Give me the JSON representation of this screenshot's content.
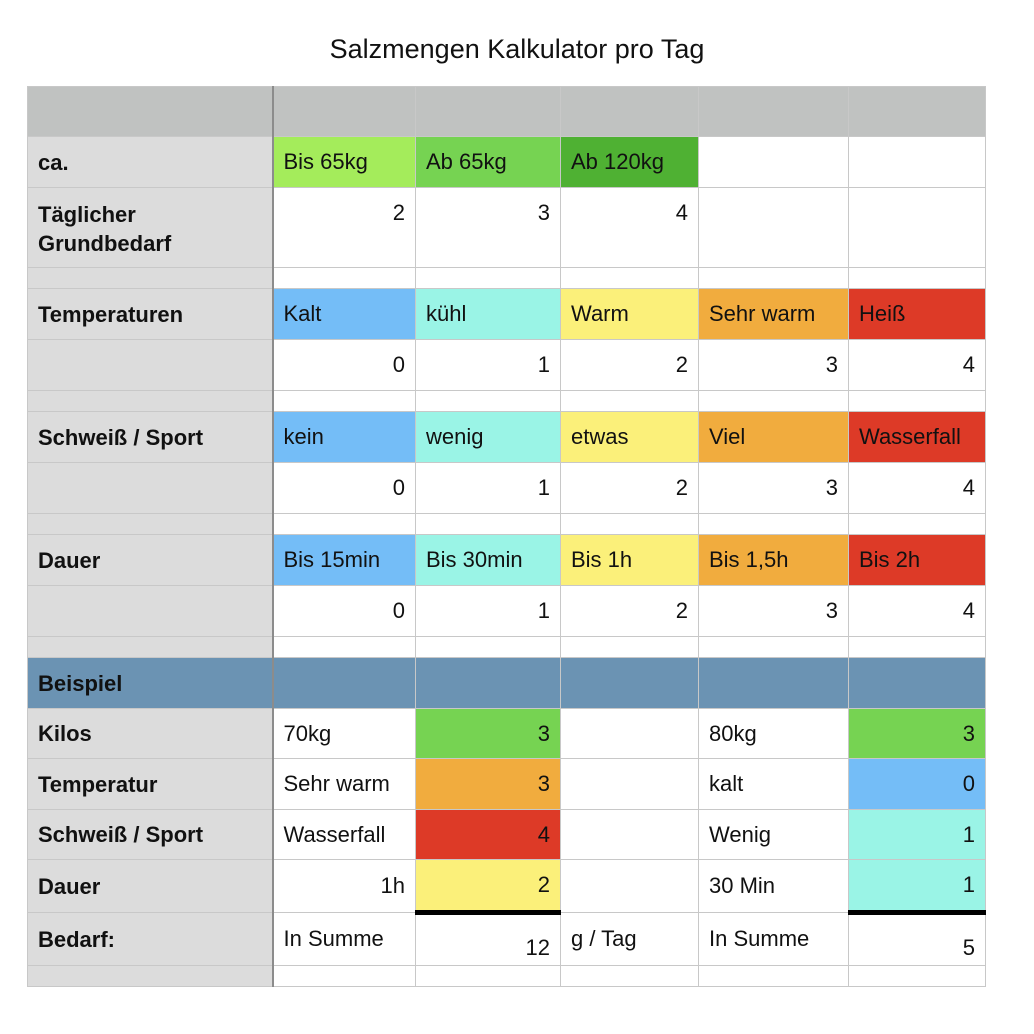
{
  "title": "Salzmengen Kalkulator pro Tag",
  "rows": {
    "weight": {
      "label": "ca.",
      "c1": "Bis 65kg",
      "c2": "Ab 65kg",
      "c3": "Ab 120kg"
    },
    "base": {
      "label": "Täglicher Grundbedarf",
      "v1": "2",
      "v2": "3",
      "v3": "4"
    },
    "temp": {
      "label": "Temperaturen",
      "c1": "Kalt",
      "c2": "kühl",
      "c3": "Warm",
      "c4": "Sehr warm",
      "c5": "Heiß",
      "v1": "0",
      "v2": "1",
      "v3": "2",
      "v4": "3",
      "v5": "4"
    },
    "sweat": {
      "label": "Schweiß / Sport",
      "c1": "kein",
      "c2": "wenig",
      "c3": "etwas",
      "c4": "Viel",
      "c5": "Wasserfall",
      "v1": "0",
      "v2": "1",
      "v3": "2",
      "v4": "3",
      "v5": "4"
    },
    "duration": {
      "label": "Dauer",
      "c1": "Bis 15min",
      "c2": "Bis 30min",
      "c3": "Bis 1h",
      "c4": "Bis 1,5h",
      "c5": "Bis 2h",
      "v1": "0",
      "v2": "1",
      "v3": "2",
      "v4": "3",
      "v5": "4"
    }
  },
  "example": {
    "header": "Beispiel",
    "kilos": {
      "label": "Kilos",
      "a": "70kg",
      "av": "3",
      "b": "80kg",
      "bv": "3"
    },
    "temperatur": {
      "label": "Temperatur",
      "a": "Sehr warm",
      "av": "3",
      "b": "kalt",
      "bv": "0"
    },
    "schweiss": {
      "label": "Schweiß / Sport",
      "a": "Wasserfall",
      "av": "4",
      "b": "Wenig",
      "bv": "1"
    },
    "dauer": {
      "label": "Dauer",
      "a": "1h",
      "av": "2",
      "b": "30 Min",
      "bv": "1"
    },
    "bedarf": {
      "label": "Bedarf:",
      "a": "In Summe",
      "av": "12",
      "unit": "g / Tag",
      "b": "In Summe",
      "bv": "5"
    }
  },
  "colors": {
    "header_gray": "#c0c2c1",
    "label_gray": "#dcdcdc",
    "example_blue": "#6b93b3",
    "lime": "#a4ec5b",
    "green": "#76d352",
    "dark_green": "#4fb133",
    "blue": "#74bdf7",
    "aqua": "#9af4e6",
    "yellow": "#fbf07a",
    "orange": "#f1ac3e",
    "red": "#dd3a27"
  }
}
